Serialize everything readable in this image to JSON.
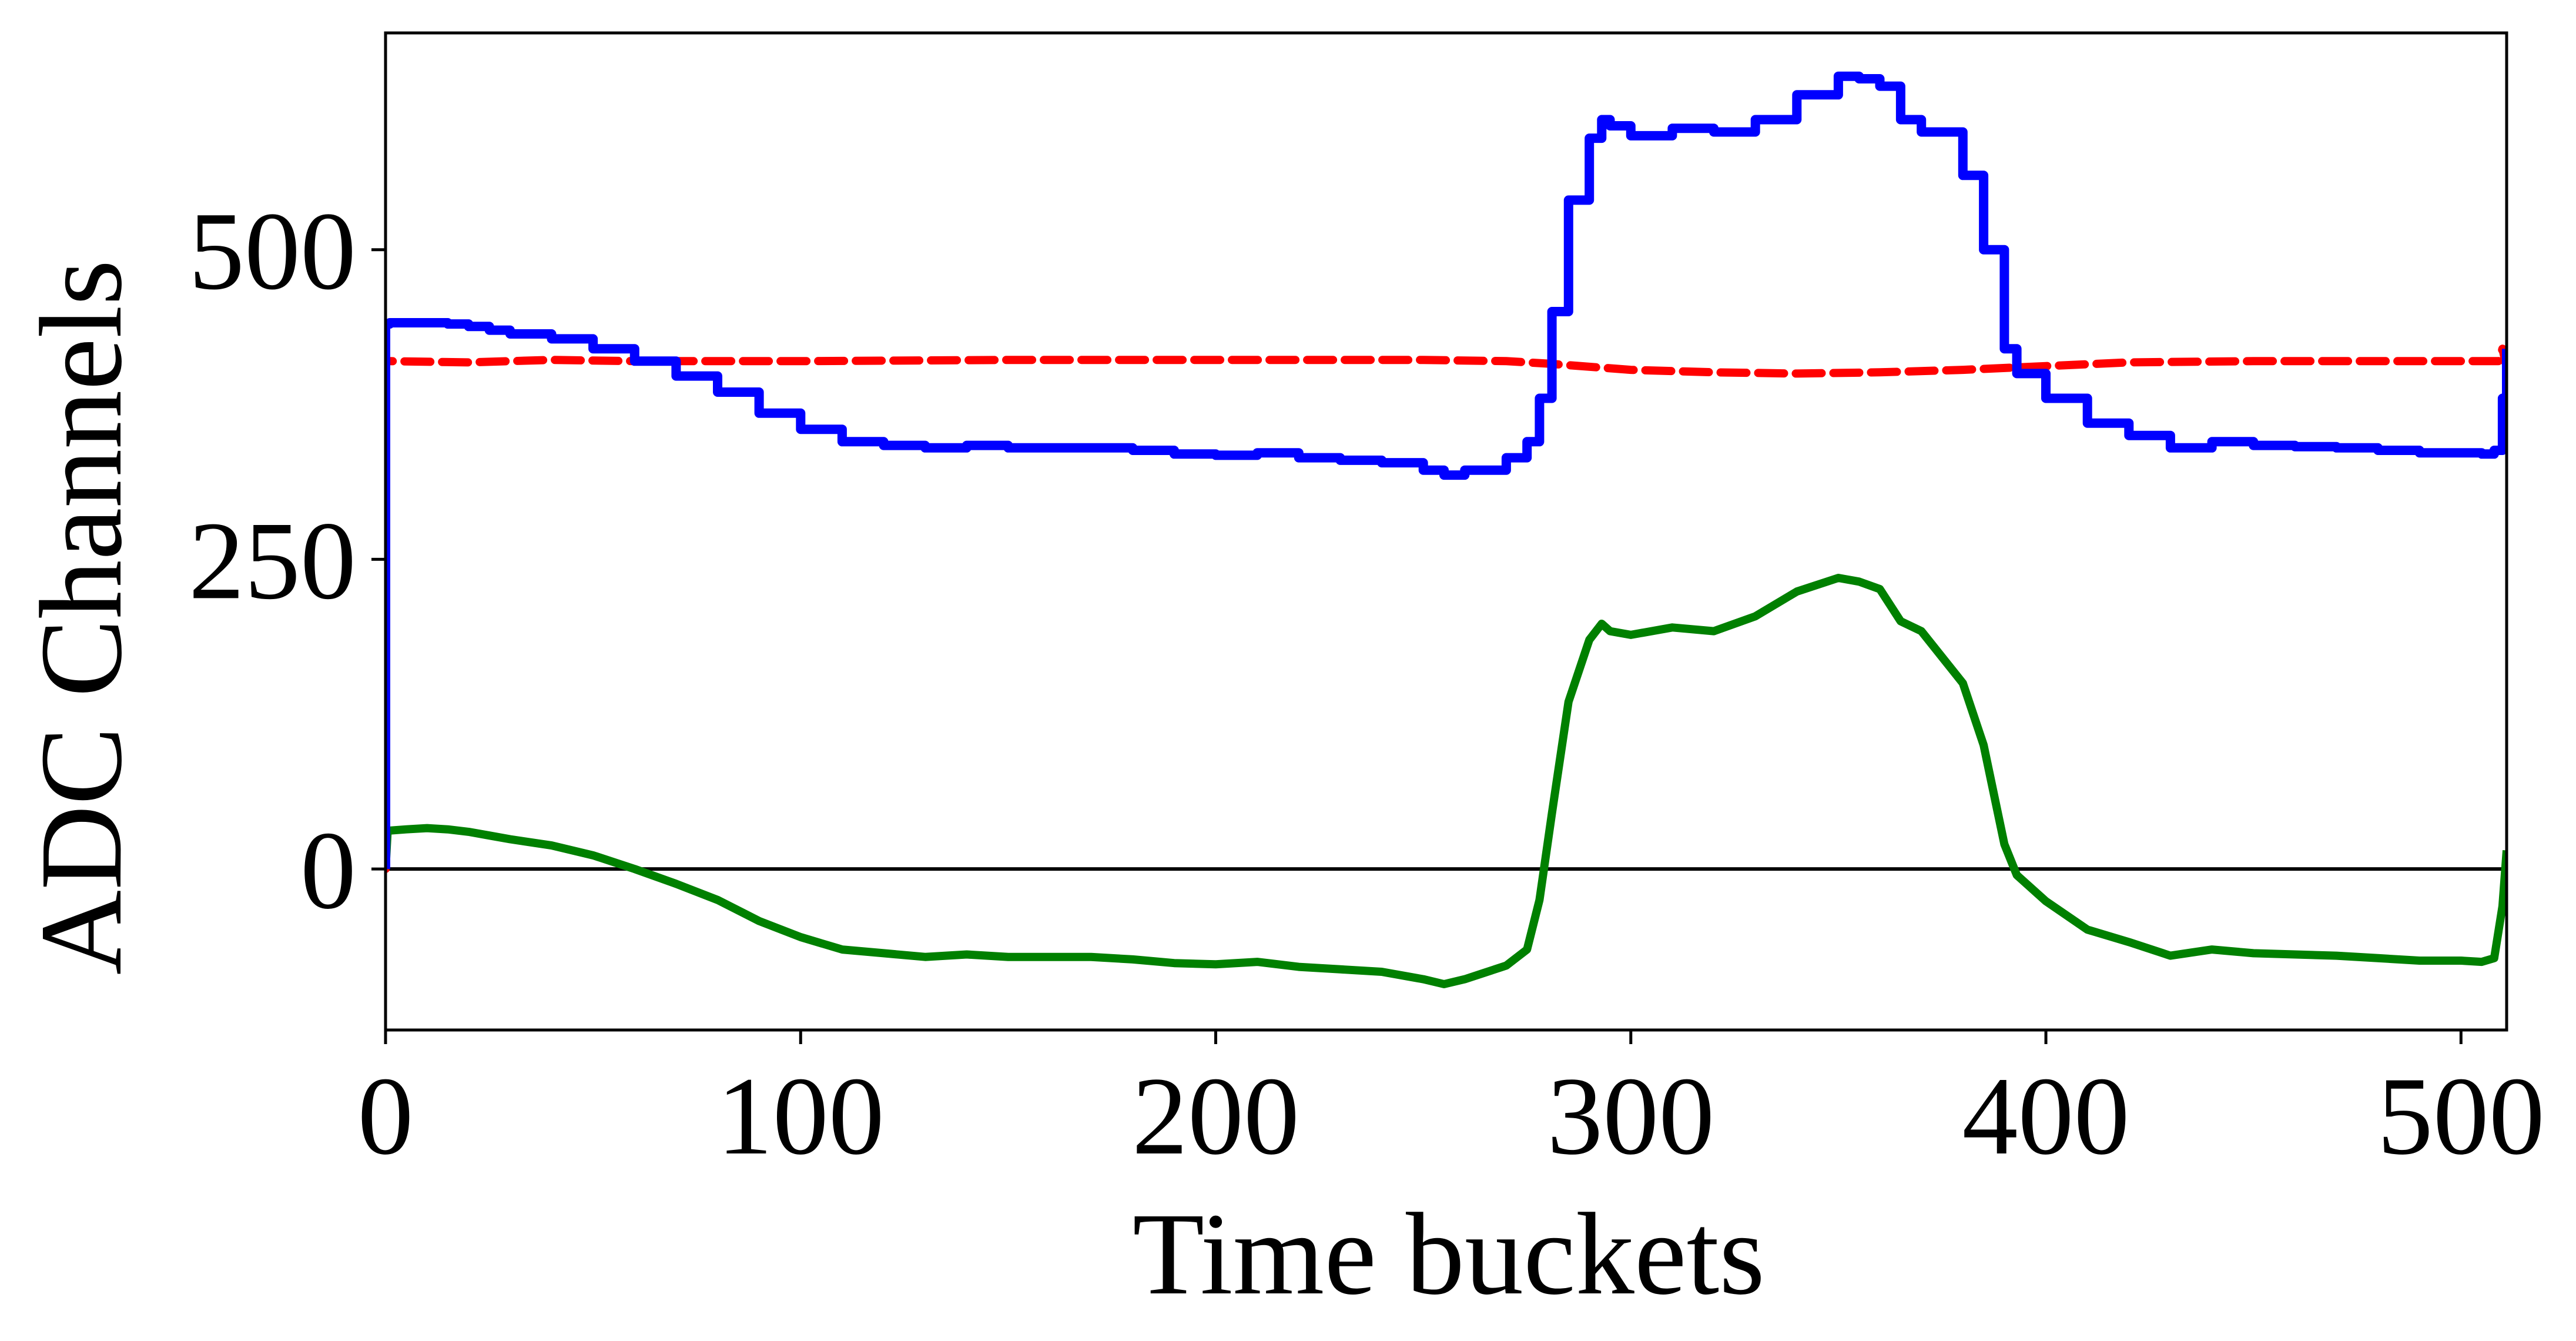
{
  "chart_data": {
    "type": "line",
    "title": "",
    "xlabel": "Time buckets",
    "ylabel": "ADC Channels",
    "xlim": [
      0,
      511
    ],
    "ylim": [
      -130,
      675
    ],
    "x_ticks": [
      0,
      100,
      200,
      300,
      400,
      500
    ],
    "y_ticks": [
      0,
      250,
      500
    ],
    "grid": false,
    "legend": "none",
    "zero_line": true,
    "colors": {
      "raw": "#0000ff",
      "baseline": "#ff0000",
      "subtracted": "#008000",
      "zero_line": "#000000"
    },
    "series": [
      {
        "key": "raw",
        "style": "steps",
        "x": [
          0,
          0,
          1,
          5,
          10,
          15,
          20,
          25,
          30,
          40,
          50,
          60,
          70,
          80,
          90,
          100,
          110,
          120,
          130,
          140,
          150,
          160,
          170,
          180,
          190,
          200,
          210,
          220,
          230,
          240,
          250,
          255,
          260,
          270,
          275,
          278,
          281,
          285,
          290,
          293,
          295,
          300,
          310,
          320,
          330,
          340,
          350,
          355,
          360,
          365,
          370,
          380,
          385,
          390,
          393,
          400,
          410,
          420,
          430,
          440,
          450,
          460,
          470,
          480,
          490,
          500,
          505,
          508,
          510,
          511
        ],
        "y": [
          0,
          440,
          441,
          441,
          441,
          440,
          438,
          435,
          432,
          428,
          420,
          410,
          398,
          385,
          368,
          355,
          345,
          342,
          340,
          342,
          340,
          340,
          340,
          338,
          335,
          334,
          336,
          332,
          330,
          328,
          322,
          318,
          322,
          332,
          345,
          380,
          450,
          540,
          590,
          605,
          600,
          592,
          598,
          595,
          605,
          625,
          640,
          638,
          632,
          605,
          595,
          560,
          500,
          420,
          400,
          380,
          360,
          350,
          340,
          345,
          342,
          341,
          340,
          338,
          336,
          336,
          335,
          338,
          380,
          420
        ]
      },
      {
        "key": "baseline",
        "style": "dashed",
        "x": [
          0,
          0,
          1,
          20,
          40,
          60,
          80,
          100,
          150,
          200,
          250,
          270,
          280,
          300,
          320,
          340,
          360,
          380,
          400,
          420,
          450,
          480,
          509,
          510,
          511
        ],
        "y": [
          0,
          410,
          410,
          409,
          411,
          410,
          410,
          410,
          411,
          411,
          411,
          410,
          408,
          403,
          401,
          400,
          401,
          403,
          406,
          409,
          410,
          410,
          410,
          420,
          405
        ]
      },
      {
        "key": "subtracted",
        "style": "solid",
        "x": [
          0,
          0.5,
          1,
          5,
          10,
          15,
          20,
          25,
          30,
          40,
          50,
          60,
          70,
          80,
          90,
          100,
          110,
          120,
          130,
          140,
          150,
          160,
          170,
          180,
          190,
          200,
          210,
          220,
          230,
          240,
          250,
          255,
          260,
          270,
          275,
          278,
          281,
          285,
          290,
          293,
          295,
          300,
          310,
          320,
          330,
          340,
          350,
          355,
          360,
          365,
          370,
          380,
          385,
          390,
          393,
          400,
          410,
          420,
          430,
          440,
          450,
          460,
          470,
          480,
          490,
          500,
          505,
          508,
          510,
          511
        ],
        "y": [
          0,
          30,
          31,
          32,
          33,
          32,
          30,
          27,
          24,
          19,
          11,
          0,
          -12,
          -25,
          -42,
          -55,
          -65,
          -68,
          -71,
          -69,
          -71,
          -71,
          -71,
          -73,
          -76,
          -77,
          -75,
          -79,
          -81,
          -83,
          -89,
          -93,
          -89,
          -78,
          -65,
          -25,
          45,
          135,
          185,
          198,
          192,
          189,
          195,
          192,
          204,
          224,
          235,
          232,
          226,
          200,
          192,
          150,
          100,
          20,
          -5,
          -26,
          -49,
          -59,
          -70,
          -65,
          -68,
          -69,
          -70,
          -72,
          -74,
          -74,
          -75,
          -72,
          -30,
          15
        ]
      }
    ]
  }
}
